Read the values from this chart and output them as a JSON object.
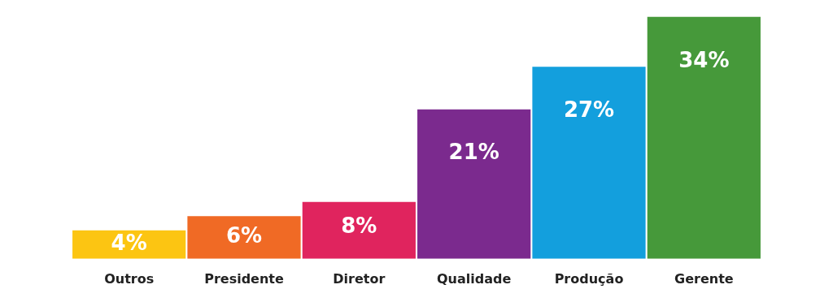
{
  "chart_data": {
    "type": "bar",
    "categories": [
      "Outros",
      "Presidente",
      "Diretor",
      "Qualidade",
      "Produção",
      "Gerente"
    ],
    "values": [
      4,
      6,
      8,
      21,
      27,
      34
    ],
    "colors": [
      "#fcc512",
      "#f06a25",
      "#e0245e",
      "#7b2a8e",
      "#139fdd",
      "#46993a"
    ],
    "value_labels": [
      "4%",
      "6%",
      "8%",
      "21%",
      "27%",
      "34%"
    ],
    "legend": false,
    "grid": false,
    "tick_labels": "x"
  }
}
